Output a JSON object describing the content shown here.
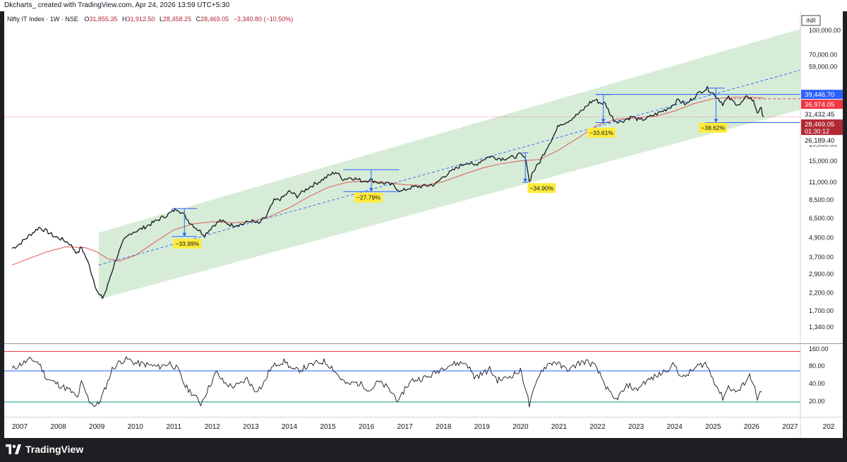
{
  "header": {
    "watermark": "Dkcharts_ created with TradingView.com, Apr 24, 2026 13:59 UTC+5:30"
  },
  "legend": {
    "symbol": "Nifty IT Index · 1W · NSE",
    "o_label": "O",
    "o_value": "31,855.35",
    "h_label": "H",
    "h_value": "31,912.50",
    "l_label": "L",
    "l_value": "28,458.25",
    "c_label": "C",
    "c_value": "28,469.05",
    "change": "−3,340.80 (−10.50%)"
  },
  "footer": {
    "brand": "TradingView",
    "logo_icon": "tradingview-logo-icon"
  },
  "colors": {
    "candle": "#131722",
    "ma": "#e05a5a",
    "channel_fill": "#c8e6c9",
    "channel_line": "#ffffff",
    "midline": "#2962ff",
    "box": "#2962ff",
    "label_bg": "#ffeb3b",
    "tag_blue": "#2962ff",
    "tag_red": "#f23645",
    "tag_dark_red": "#b22833",
    "rsi_upper": "#f23645",
    "rsi_mid": "#2962ff",
    "rsi_lower": "#089981"
  },
  "chart_data": {
    "type": "line",
    "scale": "log",
    "currency": "INR",
    "xlabels": [
      "2007",
      "2008",
      "2009",
      "2010",
      "2011",
      "2012",
      "2013",
      "2014",
      "2015",
      "2016",
      "2017",
      "2018",
      "2019",
      "2020",
      "2021",
      "2022",
      "2023",
      "2024",
      "2025",
      "2026",
      "2027",
      "202"
    ],
    "yticks": [
      "100,000.00",
      "70,000.00",
      "59,000.00",
      "19,000.00",
      "15,000.00",
      "11,000.00",
      "8,500.00",
      "6,500.00",
      "4,900.00",
      "3,700.00",
      "2,900.00",
      "2,200.00",
      "1,700.00",
      "1,340.00"
    ],
    "ytick_values": [
      100000,
      70000,
      59000,
      19000,
      15000,
      11000,
      8500,
      6500,
      4900,
      3700,
      2900,
      2200,
      1700,
      1340
    ],
    "price_tags": [
      {
        "label": "39,446.70",
        "value": 39446.7,
        "style": "blue"
      },
      {
        "label": "36,974.05",
        "value": 36974.05,
        "style": "red"
      },
      {
        "label": "31,432.45",
        "value": 31432.45,
        "style": "plain"
      },
      {
        "label": "28,469.05",
        "value": 28469.05,
        "style": "darkred",
        "sub": "01:30:12"
      },
      {
        "label": "26,189.40",
        "value": 26189.4,
        "style": "plain"
      }
    ],
    "price": [
      [
        2006.8,
        4200
      ],
      [
        2007.0,
        4500
      ],
      [
        2007.3,
        5200
      ],
      [
        2007.5,
        5700
      ],
      [
        2007.7,
        5400
      ],
      [
        2007.9,
        5000
      ],
      [
        2008.1,
        4800
      ],
      [
        2008.3,
        4500
      ],
      [
        2008.5,
        3900
      ],
      [
        2008.6,
        4300
      ],
      [
        2008.8,
        3300
      ],
      [
        2008.95,
        2500
      ],
      [
        2009.05,
        2150
      ],
      [
        2009.15,
        2050
      ],
      [
        2009.25,
        2300
      ],
      [
        2009.35,
        2800
      ],
      [
        2009.5,
        3600
      ],
      [
        2009.7,
        4700
      ],
      [
        2009.9,
        5300
      ],
      [
        2010.1,
        5500
      ],
      [
        2010.4,
        6000
      ],
      [
        2010.7,
        6600
      ],
      [
        2010.9,
        7000
      ],
      [
        2011.0,
        7300
      ],
      [
        2011.1,
        7500
      ],
      [
        2011.25,
        6900
      ],
      [
        2011.4,
        6200
      ],
      [
        2011.6,
        5600
      ],
      [
        2011.8,
        5100
      ],
      [
        2012.0,
        5800
      ],
      [
        2012.2,
        6300
      ],
      [
        2012.5,
        5900
      ],
      [
        2012.8,
        6000
      ],
      [
        2013.0,
        6300
      ],
      [
        2013.2,
        6000
      ],
      [
        2013.4,
        6700
      ],
      [
        2013.6,
        8400
      ],
      [
        2013.8,
        8700
      ],
      [
        2014.0,
        9600
      ],
      [
        2014.2,
        9000
      ],
      [
        2014.5,
        10200
      ],
      [
        2014.8,
        11200
      ],
      [
        2015.0,
        12000
      ],
      [
        2015.2,
        12800
      ],
      [
        2015.4,
        11500
      ],
      [
        2015.6,
        11800
      ],
      [
        2015.9,
        11200
      ],
      [
        2016.1,
        11400
      ],
      [
        2016.3,
        11000
      ],
      [
        2016.5,
        10800
      ],
      [
        2016.7,
        10500
      ],
      [
        2016.9,
        9600
      ],
      [
        2017.1,
        10100
      ],
      [
        2017.3,
        10300
      ],
      [
        2017.5,
        10400
      ],
      [
        2017.8,
        10700
      ],
      [
        2018.0,
        12000
      ],
      [
        2018.2,
        12800
      ],
      [
        2018.4,
        13800
      ],
      [
        2018.6,
        14700
      ],
      [
        2018.8,
        14000
      ],
      [
        2019.0,
        15200
      ],
      [
        2019.2,
        16000
      ],
      [
        2019.5,
        15500
      ],
      [
        2019.8,
        15800
      ],
      [
        2020.0,
        16500
      ],
      [
        2020.15,
        15200
      ],
      [
        2020.23,
        11000
      ],
      [
        2020.3,
        12500
      ],
      [
        2020.5,
        14800
      ],
      [
        2020.7,
        18500
      ],
      [
        2020.9,
        22500
      ],
      [
        2021.0,
        25500
      ],
      [
        2021.2,
        26500
      ],
      [
        2021.4,
        28500
      ],
      [
        2021.6,
        31000
      ],
      [
        2021.8,
        35000
      ],
      [
        2021.95,
        36500
      ],
      [
        2022.05,
        35000
      ],
      [
        2022.2,
        34500
      ],
      [
        2022.35,
        29000
      ],
      [
        2022.45,
        27000
      ],
      [
        2022.6,
        26500
      ],
      [
        2022.75,
        27500
      ],
      [
        2022.9,
        28500
      ],
      [
        2023.1,
        27000
      ],
      [
        2023.3,
        28000
      ],
      [
        2023.5,
        29500
      ],
      [
        2023.7,
        31000
      ],
      [
        2023.9,
        33000
      ],
      [
        2024.1,
        36500
      ],
      [
        2024.3,
        34000
      ],
      [
        2024.5,
        38000
      ],
      [
        2024.7,
        41500
      ],
      [
        2024.85,
        43000
      ],
      [
        2024.95,
        41000
      ],
      [
        2025.1,
        38000
      ],
      [
        2025.25,
        34500
      ],
      [
        2025.4,
        37500
      ],
      [
        2025.55,
        35000
      ],
      [
        2025.7,
        34000
      ],
      [
        2025.85,
        37500
      ],
      [
        2025.95,
        38000
      ],
      [
        2026.05,
        35500
      ],
      [
        2026.15,
        30500
      ],
      [
        2026.25,
        31855
      ],
      [
        2026.31,
        28469
      ]
    ],
    "ma": [
      [
        2006.8,
        3300
      ],
      [
        2007.2,
        3600
      ],
      [
        2007.7,
        4000
      ],
      [
        2008.2,
        4300
      ],
      [
        2008.7,
        4250
      ],
      [
        2009.0,
        4000
      ],
      [
        2009.3,
        3600
      ],
      [
        2009.6,
        3500
      ],
      [
        2010.0,
        3800
      ],
      [
        2010.5,
        4600
      ],
      [
        2011.0,
        5500
      ],
      [
        2011.5,
        6000
      ],
      [
        2012.0,
        6200
      ],
      [
        2012.5,
        6100
      ],
      [
        2013.0,
        6200
      ],
      [
        2013.5,
        6700
      ],
      [
        2014.0,
        7600
      ],
      [
        2014.5,
        8900
      ],
      [
        2015.0,
        10200
      ],
      [
        2015.5,
        11000
      ],
      [
        2016.0,
        11200
      ],
      [
        2016.5,
        11000
      ],
      [
        2017.0,
        10600
      ],
      [
        2017.5,
        10500
      ],
      [
        2018.0,
        11100
      ],
      [
        2018.5,
        12300
      ],
      [
        2019.0,
        13500
      ],
      [
        2019.5,
        14400
      ],
      [
        2020.0,
        15000
      ],
      [
        2020.5,
        15300
      ],
      [
        2021.0,
        17600
      ],
      [
        2021.5,
        21000
      ],
      [
        2022.0,
        25300
      ],
      [
        2022.5,
        27500
      ],
      [
        2023.0,
        28000
      ],
      [
        2023.5,
        28700
      ],
      [
        2024.0,
        31000
      ],
      [
        2024.5,
        34500
      ],
      [
        2025.0,
        37000
      ],
      [
        2025.5,
        37800
      ],
      [
        2026.0,
        37800
      ],
      [
        2026.31,
        37400
      ]
    ],
    "drawdowns": [
      {
        "label": "−33.99%",
        "x1": 2010.95,
        "x2": 2011.6,
        "top": 7500,
        "bottom": 5000,
        "label_x": 2011.35,
        "label_y": 4500
      },
      {
        "label": "−27.79%",
        "x1": 2015.4,
        "x2": 2016.85,
        "top": 13200,
        "bottom": 9600,
        "label_x": 2016.05,
        "label_y": 8800
      },
      {
        "label": "−34.90%",
        "x1": 2020.05,
        "x2": 2020.2,
        "top": 16900,
        "bottom": 11000,
        "label_x": 2020.55,
        "label_y": 10100
      },
      {
        "label": "−33.61%",
        "x1": 2021.95,
        "x2": 2022.35,
        "top": 39400,
        "bottom": 26200,
        "label_x": 2022.1,
        "label_y": 22600
      },
      {
        "label": "−38.62%",
        "x1": 2024.85,
        "x2": 2025.3,
        "top": 43200,
        "bottom": 26200,
        "label_x": 2025.0,
        "label_y": 24300
      }
    ],
    "hlines": [
      {
        "from": 2021.95,
        "value": 39446.7,
        "style": "box"
      },
      {
        "from": 2025.4,
        "value": 36974.05,
        "style": "dashed-red"
      },
      {
        "from": 2020.5,
        "value": 28469.05,
        "style": "dotted-red"
      },
      {
        "from": 2024.8,
        "value": 26189.4,
        "style": "box"
      }
    ],
    "channel": {
      "lower": [
        [
          2009.05,
          2000
        ],
        [
          2026.5,
          28000
        ]
      ],
      "upper": [
        [
          2009.05,
          5300
        ],
        [
          2027.7,
          110000
        ]
      ],
      "mid": [
        [
          2009.05,
          3300
        ],
        [
          2027.7,
          60000
        ]
      ]
    },
    "rsi": {
      "yticks": [
        "160.00",
        "80.00",
        "40.00",
        "20.00"
      ],
      "ytick_values": [
        160,
        80,
        40,
        20
      ],
      "levels": [
        95,
        70,
        30
      ],
      "values": [
        [
          2006.8,
          72
        ],
        [
          2007.0,
          78
        ],
        [
          2007.3,
          85
        ],
        [
          2007.5,
          80
        ],
        [
          2007.7,
          60
        ],
        [
          2007.9,
          55
        ],
        [
          2008.1,
          50
        ],
        [
          2008.3,
          45
        ],
        [
          2008.5,
          35
        ],
        [
          2008.6,
          55
        ],
        [
          2008.8,
          32
        ],
        [
          2008.95,
          25
        ],
        [
          2009.05,
          28
        ],
        [
          2009.2,
          45
        ],
        [
          2009.4,
          72
        ],
        [
          2009.6,
          82
        ],
        [
          2009.8,
          85
        ],
        [
          2010.0,
          80
        ],
        [
          2010.3,
          78
        ],
        [
          2010.6,
          75
        ],
        [
          2010.9,
          80
        ],
        [
          2011.1,
          72
        ],
        [
          2011.3,
          50
        ],
        [
          2011.5,
          40
        ],
        [
          2011.7,
          28
        ],
        [
          2011.9,
          48
        ],
        [
          2012.1,
          68
        ],
        [
          2012.3,
          55
        ],
        [
          2012.5,
          50
        ],
        [
          2012.7,
          52
        ],
        [
          2012.9,
          60
        ],
        [
          2013.1,
          45
        ],
        [
          2013.3,
          50
        ],
        [
          2013.5,
          72
        ],
        [
          2013.7,
          80
        ],
        [
          2013.9,
          82
        ],
        [
          2014.1,
          70
        ],
        [
          2014.3,
          72
        ],
        [
          2014.5,
          76
        ],
        [
          2014.7,
          80
        ],
        [
          2014.9,
          82
        ],
        [
          2015.1,
          75
        ],
        [
          2015.3,
          62
        ],
        [
          2015.5,
          52
        ],
        [
          2015.7,
          55
        ],
        [
          2015.9,
          52
        ],
        [
          2016.1,
          45
        ],
        [
          2016.3,
          56
        ],
        [
          2016.5,
          50
        ],
        [
          2016.7,
          40
        ],
        [
          2016.85,
          30
        ],
        [
          2017.0,
          48
        ],
        [
          2017.2,
          58
        ],
        [
          2017.4,
          60
        ],
        [
          2017.6,
          62
        ],
        [
          2017.8,
          68
        ],
        [
          2018.0,
          75
        ],
        [
          2018.2,
          78
        ],
        [
          2018.4,
          80
        ],
        [
          2018.6,
          80
        ],
        [
          2018.8,
          62
        ],
        [
          2019.0,
          66
        ],
        [
          2019.2,
          72
        ],
        [
          2019.4,
          58
        ],
        [
          2019.6,
          60
        ],
        [
          2019.8,
          65
        ],
        [
          2020.0,
          70
        ],
        [
          2020.15,
          45
        ],
        [
          2020.23,
          25
        ],
        [
          2020.35,
          45
        ],
        [
          2020.5,
          68
        ],
        [
          2020.7,
          78
        ],
        [
          2020.9,
          82
        ],
        [
          2021.1,
          74
        ],
        [
          2021.3,
          72
        ],
        [
          2021.5,
          80
        ],
        [
          2021.7,
          82
        ],
        [
          2021.9,
          78
        ],
        [
          2022.1,
          62
        ],
        [
          2022.3,
          42
        ],
        [
          2022.45,
          32
        ],
        [
          2022.6,
          40
        ],
        [
          2022.8,
          52
        ],
        [
          2023.0,
          45
        ],
        [
          2023.2,
          55
        ],
        [
          2023.4,
          60
        ],
        [
          2023.6,
          65
        ],
        [
          2023.8,
          72
        ],
        [
          2024.0,
          78
        ],
        [
          2024.2,
          60
        ],
        [
          2024.4,
          68
        ],
        [
          2024.6,
          76
        ],
        [
          2024.8,
          80
        ],
        [
          2024.95,
          65
        ],
        [
          2025.1,
          50
        ],
        [
          2025.25,
          35
        ],
        [
          2025.4,
          50
        ],
        [
          2025.55,
          44
        ],
        [
          2025.7,
          45
        ],
        [
          2025.85,
          58
        ],
        [
          2025.95,
          64
        ],
        [
          2026.05,
          55
        ],
        [
          2026.15,
          32
        ],
        [
          2026.22,
          40
        ],
        [
          2026.31,
          44
        ]
      ]
    }
  }
}
